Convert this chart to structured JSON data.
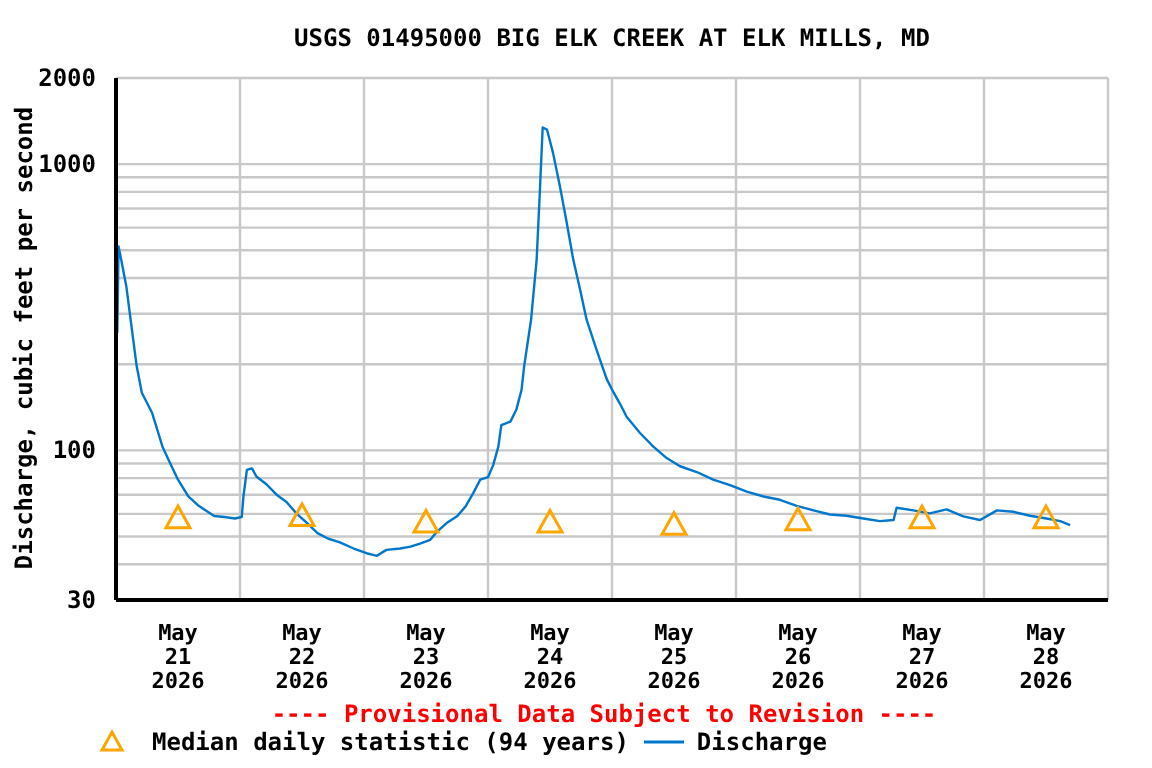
{
  "chart_data": {
    "type": "line",
    "title": "USGS 01495000 BIG ELK CREEK AT ELK MILLS, MD",
    "ylabel": "Discharge, cubic feet per second",
    "annotations": [
      "---- Provisional Data Subject to Revision ----"
    ],
    "log": "y",
    "grid": true,
    "legend": "bottom",
    "xlim": [
      "2026-05-21T00:00",
      "2026-05-29T00:00"
    ],
    "xticks": [
      {
        "value": "2026-05-21T00:00",
        "label": null
      },
      {
        "value": "2026-05-21T12:00",
        "label": "May\n21\n2026"
      },
      {
        "value": "2026-05-22T00:00",
        "label": null
      },
      {
        "value": "2026-05-22T12:00",
        "label": "May\n22\n2026"
      },
      {
        "value": "2026-05-23T00:00",
        "label": null
      },
      {
        "value": "2026-05-23T12:00",
        "label": "May\n23\n2026"
      },
      {
        "value": "2026-05-24T00:00",
        "label": null
      },
      {
        "value": "2026-05-24T12:00",
        "label": "May\n24\n2026"
      },
      {
        "value": "2026-05-25T00:00",
        "label": null
      },
      {
        "value": "2026-05-25T12:00",
        "label": "May\n25\n2026"
      },
      {
        "value": "2026-05-26T00:00",
        "label": null
      },
      {
        "value": "2026-05-26T12:00",
        "label": "May\n26\n2026"
      },
      {
        "value": "2026-05-27T00:00",
        "label": null
      },
      {
        "value": "2026-05-27T12:00",
        "label": "May\n27\n2026"
      },
      {
        "value": "2026-05-28T00:00",
        "label": null
      },
      {
        "value": "2026-05-28T12:00",
        "label": "May\n28\n2026"
      },
      {
        "value": "2026-05-29T00:00",
        "label": null
      }
    ],
    "ylim": [
      30,
      2000
    ],
    "yticks": [
      30,
      {
        "value": 40,
        "label": null
      },
      {
        "value": 50,
        "label": null
      },
      {
        "value": 60,
        "label": null
      },
      {
        "value": 70,
        "label": null
      },
      {
        "value": 80,
        "label": null
      },
      {
        "value": 90,
        "label": null
      },
      100,
      {
        "value": 200,
        "label": null
      },
      {
        "value": 300,
        "label": null
      },
      {
        "value": 400,
        "label": null
      },
      {
        "value": 500,
        "label": null
      },
      {
        "value": 600,
        "label": null
      },
      {
        "value": 700,
        "label": null
      },
      {
        "value": 800,
        "label": null
      },
      {
        "value": 900,
        "label": null
      },
      1000,
      2000
    ],
    "series": [
      {
        "name": "Median daily statistic (94 years)",
        "type": "scatter",
        "marker": "triangle",
        "color": "#ffa500",
        "x": [
          "2026-05-21T12:00",
          "2026-05-22T12:00",
          "2026-05-23T12:00",
          "2026-05-24T12:00",
          "2026-05-25T12:00",
          "2026-05-26T12:00",
          "2026-05-27T12:00",
          "2026-05-28T12:00"
        ],
        "values": [
          58,
          59,
          56,
          56,
          55,
          57,
          58,
          58
        ]
      },
      {
        "name": "Discharge",
        "marker": "none",
        "color": "#0077cc",
        "x": [
          "2026-05-21T00:15",
          "2026-05-21T00:30",
          "2026-05-21T01:00",
          "2026-05-21T02:00",
          "2026-05-21T03:00",
          "2026-05-21T04:00",
          "2026-05-21T05:00",
          "2026-05-21T07:00",
          "2026-05-21T08:00",
          "2026-05-21T09:00",
          "2026-05-21T10:30",
          "2026-05-21T12:00",
          "2026-05-21T14:00",
          "2026-05-21T16:00",
          "2026-05-21T19:00",
          "2026-05-21T21:00",
          "2026-05-21T23:00",
          "2026-05-22T00:20",
          "2026-05-22T00:40",
          "2026-05-22T01:20",
          "2026-05-22T02:20",
          "2026-05-22T03:10",
          "2026-05-22T05:10",
          "2026-05-22T07:05",
          "2026-05-22T09:00",
          "2026-05-22T11:00",
          "2026-05-22T13:00",
          "2026-05-22T15:00",
          "2026-05-22T17:00",
          "2026-05-22T19:20",
          "2026-05-22T22:00",
          "2026-05-23T00:30",
          "2026-05-23T02:30",
          "2026-05-23T04:20",
          "2026-05-23T07:00",
          "2026-05-23T09:00",
          "2026-05-23T10:50",
          "2026-05-23T12:50",
          "2026-05-23T14:05",
          "2026-05-23T16:00",
          "2026-05-23T18:00",
          "2026-05-23T19:40",
          "2026-05-23T21:10",
          "2026-05-23T22:30",
          "2026-05-24T00:00",
          "2026-05-24T01:00",
          "2026-05-24T02:00",
          "2026-05-24T02:35",
          "2026-05-24T04:20",
          "2026-05-24T05:30",
          "2026-05-24T06:30",
          "2026-05-24T07:00",
          "2026-05-24T08:20",
          "2026-05-24T09:25",
          "2026-05-24T10:05",
          "2026-05-24T10:35",
          "2026-05-24T11:25",
          "2026-05-24T12:35",
          "2026-05-24T13:55",
          "2026-05-24T15:15",
          "2026-05-24T16:30",
          "2026-05-24T17:50",
          "2026-05-24T19:05",
          "2026-05-24T21:00",
          "2026-05-24T23:00",
          "2026-05-25T00:20",
          "2026-05-25T01:30",
          "2026-05-25T02:50",
          "2026-05-25T05:25",
          "2026-05-25T08:00",
          "2026-05-25T10:35",
          "2026-05-25T13:10",
          "2026-05-25T16:25",
          "2026-05-25T19:35",
          "2026-05-25T22:50",
          "2026-05-26T02:05",
          "2026-05-26T05:20",
          "2026-05-26T08:30",
          "2026-05-26T11:45",
          "2026-05-26T15:00",
          "2026-05-26T18:10",
          "2026-05-26T21:25",
          "2026-05-27T00:40",
          "2026-05-27T03:50",
          "2026-05-27T06:30",
          "2026-05-27T07:05",
          "2026-05-27T10:20",
          "2026-05-27T13:30",
          "2026-05-27T16:45",
          "2026-05-27T20:00",
          "2026-05-27T23:15",
          "2026-05-28T02:30",
          "2026-05-28T05:40",
          "2026-05-28T08:55",
          "2026-05-28T12:05",
          "2026-05-28T14:45",
          "2026-05-28T16:40"
        ],
        "values": [
          257,
          516,
          464,
          374,
          271,
          197,
          159,
          135,
          118,
          103,
          90,
          79,
          69,
          64,
          59,
          58.5,
          57.8,
          58.5,
          69,
          85.5,
          86.5,
          81,
          76,
          70,
          66,
          60,
          55.7,
          51.4,
          49.2,
          47.7,
          45.4,
          43.7,
          42.8,
          44.9,
          45.4,
          46.1,
          47.2,
          48.7,
          51.9,
          55.7,
          58.8,
          63.7,
          71,
          79,
          80.6,
          88.8,
          103,
          122.6,
          126,
          139,
          163,
          197,
          286,
          464,
          837,
          1343,
          1321,
          1095,
          837,
          623,
          464,
          364,
          286,
          225,
          177,
          159,
          146,
          131,
          115,
          103,
          94,
          88,
          84,
          79,
          75.6,
          71.7,
          69,
          67.2,
          64,
          61.7,
          59.7,
          59.1,
          57.8,
          56.6,
          57.1,
          63,
          61.7,
          60.2,
          62.2,
          58.8,
          57.1,
          61.7,
          61,
          59.1,
          57.8,
          56.6,
          54.8
        ]
      }
    ]
  }
}
